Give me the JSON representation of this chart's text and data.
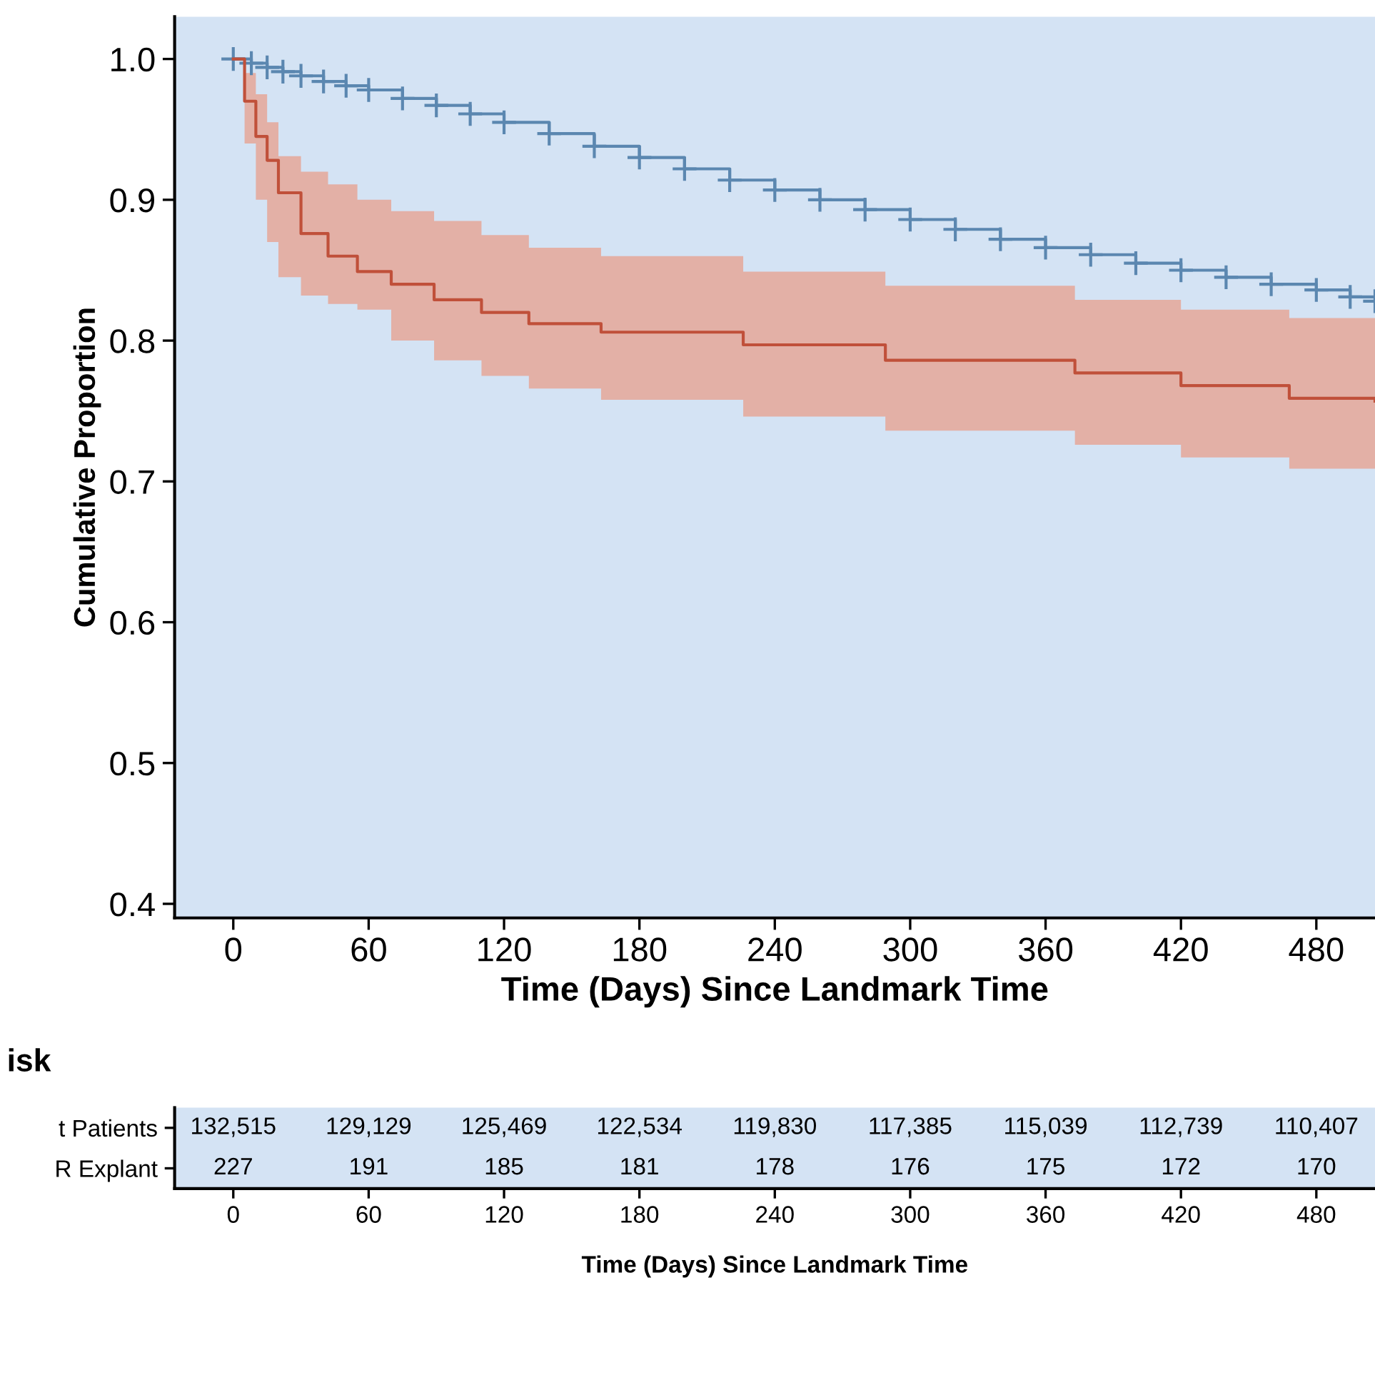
{
  "chart_data": [
    {
      "type": "step",
      "xlabel": "Time (Days) Since Landmark Time",
      "ylabel": "Cumulative Proportion",
      "xlim": [
        -26,
        506
      ],
      "ylim": [
        0.39,
        1.03
      ],
      "xticks": [
        0,
        60,
        120,
        180,
        240,
        300,
        360,
        420,
        480
      ],
      "yticks": [
        {
          "value": 0.4,
          "label": "0.4"
        },
        {
          "value": 0.5,
          "label": "0.5"
        },
        {
          "value": 0.6,
          "label": "0.6"
        },
        {
          "value": 0.7,
          "label": "0.7"
        },
        {
          "value": 0.8,
          "label": "0.8"
        },
        {
          "value": 0.9,
          "label": "0.9"
        },
        {
          "value": 1,
          "label": "1.0"
        }
      ],
      "grid": false,
      "series": [
        {
          "color": "#5b87b0",
          "marker": "cross",
          "x": [
            0,
            8,
            15,
            22,
            30,
            40,
            50,
            60,
            75,
            90,
            105,
            120,
            140,
            160,
            180,
            200,
            220,
            240,
            260,
            280,
            300,
            320,
            340,
            360,
            380,
            400,
            420,
            440,
            460,
            480,
            495,
            506
          ],
          "values": [
            1.0,
            0.997,
            0.994,
            0.991,
            0.988,
            0.984,
            0.981,
            0.978,
            0.972,
            0.967,
            0.961,
            0.955,
            0.947,
            0.938,
            0.93,
            0.922,
            0.914,
            0.907,
            0.9,
            0.893,
            0.886,
            0.879,
            0.872,
            0.866,
            0.861,
            0.855,
            0.85,
            0.845,
            0.84,
            0.836,
            0.831,
            0.828
          ]
        },
        {
          "color": "#c0503a",
          "marker": "none",
          "x": [
            0,
            5,
            10,
            15,
            20,
            30,
            42,
            55,
            70,
            89,
            110,
            131,
            163,
            226,
            289,
            373,
            420,
            468,
            506
          ],
          "values": [
            1.0,
            0.97,
            0.945,
            0.928,
            0.905,
            0.876,
            0.86,
            0.849,
            0.84,
            0.829,
            0.82,
            0.812,
            0.806,
            0.797,
            0.786,
            0.777,
            0.768,
            0.759,
            0.757
          ],
          "lower": [
            1.0,
            0.94,
            0.9,
            0.87,
            0.845,
            0.832,
            0.826,
            0.822,
            0.8,
            0.786,
            0.775,
            0.766,
            0.758,
            0.746,
            0.736,
            0.726,
            0.717,
            0.709,
            0.707
          ],
          "upper": [
            1.0,
            0.99,
            0.975,
            0.955,
            0.931,
            0.92,
            0.911,
            0.9,
            0.892,
            0.885,
            0.875,
            0.866,
            0.86,
            0.849,
            0.839,
            0.829,
            0.822,
            0.816,
            0.815
          ]
        }
      ]
    },
    {
      "type": "heatmap",
      "title": "isk",
      "xlabel": "Time (Days) Since Landmark Time",
      "categories": [
        "0",
        "60",
        "120",
        "180",
        "240",
        "300",
        "360",
        "420",
        "480"
      ],
      "y_categories": [
        "t Patients",
        "R Explant"
      ],
      "cells": [
        [
          132515,
          129129,
          125469,
          122534,
          119830,
          117385,
          115039,
          112739,
          110407
        ],
        [
          227,
          191,
          185,
          181,
          178,
          176,
          175,
          172,
          170
        ]
      ],
      "cell_labels": [
        [
          "132,515",
          "129,129",
          "125,469",
          "122,534",
          "119,830",
          "117,385",
          "115,039",
          "112,739",
          "110,407"
        ],
        [
          "227",
          "191",
          "185",
          "181",
          "178",
          "176",
          "175",
          "172",
          "170"
        ]
      ]
    }
  ]
}
